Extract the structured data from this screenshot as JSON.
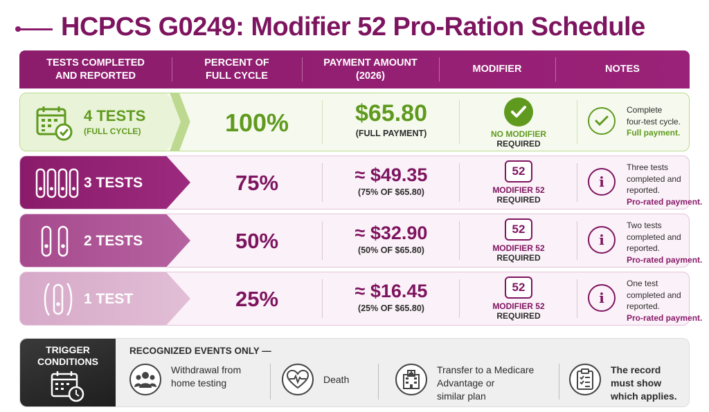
{
  "title": "HCPCS G0249: Modifier 52 Pro-Ration Schedule",
  "columns": [
    "TESTS COMPLETED\nAND REPORTED",
    "PERCENT OF\nFULL CYCLE",
    "PAYMENT AMOUNT\n(2026)",
    "MODIFIER",
    "NOTES"
  ],
  "rows": [
    {
      "tests": "4 TESTS",
      "tests_sub": "(FULL CYCLE)",
      "percent": "100%",
      "payment": "$65.80",
      "payment_sub": "(FULL PAYMENT)",
      "modifier": "NO MODIFIER",
      "modifier_req": "REQUIRED",
      "note_lines": [
        "Complete",
        "four-test cycle."
      ],
      "note_em": "Full payment.",
      "icon": "calendar-check-icon",
      "status_icon": "check-circle-icon"
    },
    {
      "tests": "3 TESTS",
      "percent": "75%",
      "payment": "≈ $49.35",
      "payment_sub": "(75% OF $65.80)",
      "modifier_code": "52",
      "modifier": "MODIFIER 52",
      "modifier_req": "REQUIRED",
      "note_lines": [
        "Three tests",
        "completed and",
        "reported."
      ],
      "note_em": "Pro-rated payment.",
      "icon": "test-strips-icon",
      "status_icon": "info-icon"
    },
    {
      "tests": "2 TESTS",
      "percent": "50%",
      "payment": "≈ $32.90",
      "payment_sub": "(50% OF $65.80)",
      "modifier_code": "52",
      "modifier": "MODIFIER 52",
      "modifier_req": "REQUIRED",
      "note_lines": [
        "Two tests",
        "completed and",
        "reported."
      ],
      "note_em": "Pro-rated payment.",
      "icon": "test-strips-icon",
      "status_icon": "info-icon"
    },
    {
      "tests": "1 TEST",
      "percent": "25%",
      "payment": "≈ $16.45",
      "payment_sub": "(25% OF $65.80)",
      "modifier_code": "52",
      "modifier": "MODIFIER 52",
      "modifier_req": "REQUIRED",
      "note_lines": [
        "One test",
        "completed and",
        "reported."
      ],
      "note_em": "Pro-rated payment.",
      "icon": "test-strip-icon",
      "status_icon": "info-icon"
    }
  ],
  "trigger": {
    "title": "TRIGGER\nCONDITIONS",
    "heading": "RECOGNIZED EVENTS ONLY —",
    "events": [
      {
        "label": "Withdrawal from\nhome testing",
        "icon": "people-icon"
      },
      {
        "label": "Death",
        "icon": "heart-monitor-icon"
      },
      {
        "label": "Transfer to a Medicare\nAdvantage or\nsimilar plan",
        "icon": "hospital-icon"
      },
      {
        "label": "The record\nmust show\nwhich applies.",
        "icon": "clipboard-checklist-icon"
      }
    ]
  },
  "colors": {
    "brand_purple": "#7d145f",
    "header_purple": "#8c1c6c",
    "success_green": "#5f9a1f",
    "panel_dark": "#2a2a2a"
  }
}
